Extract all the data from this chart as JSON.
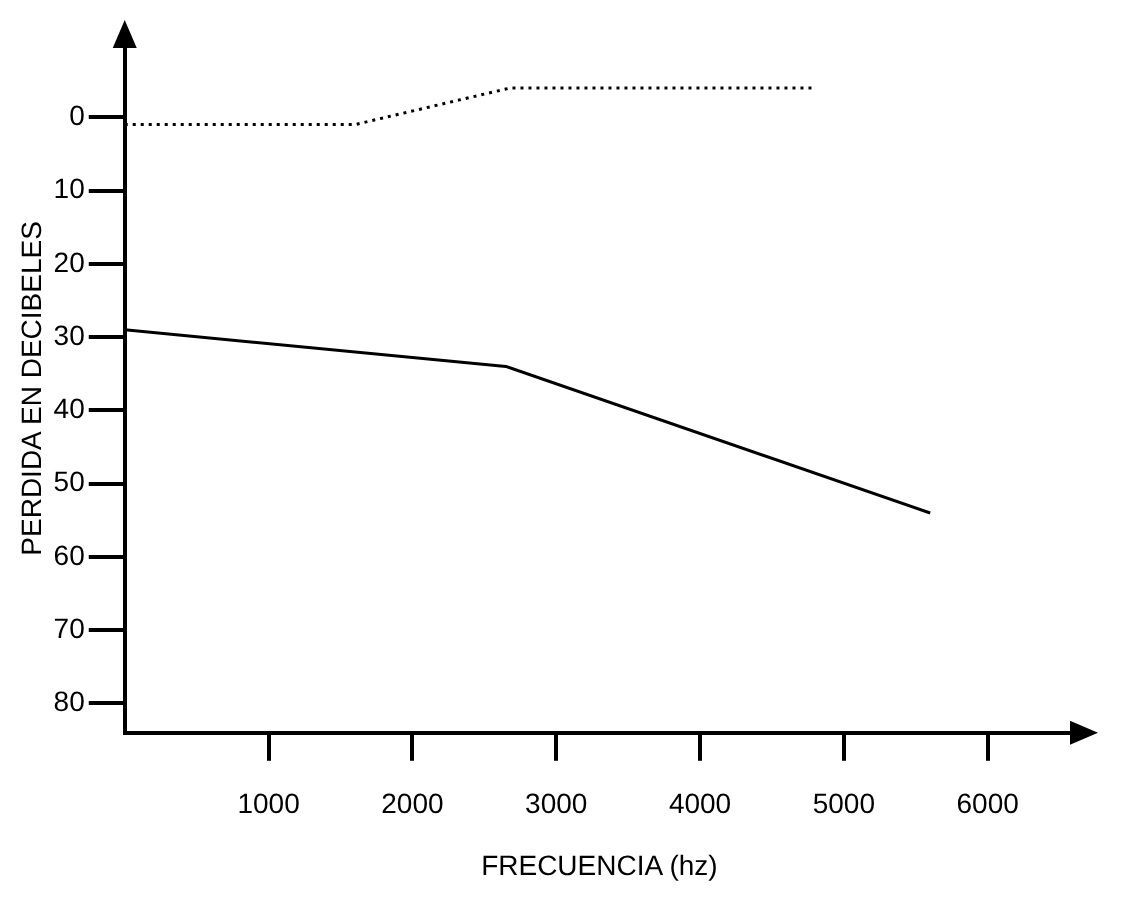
{
  "chart_data": {
    "type": "line",
    "xlabel": "FRECUENCIA (hz)",
    "ylabel": "PERDIDA EN DECIBELES",
    "xlim": [
      0,
      6600
    ],
    "xticks": [
      1000,
      2000,
      3000,
      4000,
      5000,
      6000
    ],
    "ylim": [
      84,
      -10
    ],
    "yticks": [
      0,
      10,
      20,
      30,
      40,
      50,
      60,
      70,
      80
    ],
    "grid": false,
    "legend": false,
    "marker": "none",
    "series": [
      {
        "color": "#000000",
        "line_style": "dotted",
        "x": [
          0,
          1600,
          2680,
          4790
        ],
        "values": [
          1,
          1,
          -4,
          -4
        ]
      },
      {
        "color": "#000000",
        "line_style": "solid",
        "x": [
          0,
          2650,
          5600
        ],
        "values": [
          29,
          34,
          54
        ]
      }
    ]
  }
}
